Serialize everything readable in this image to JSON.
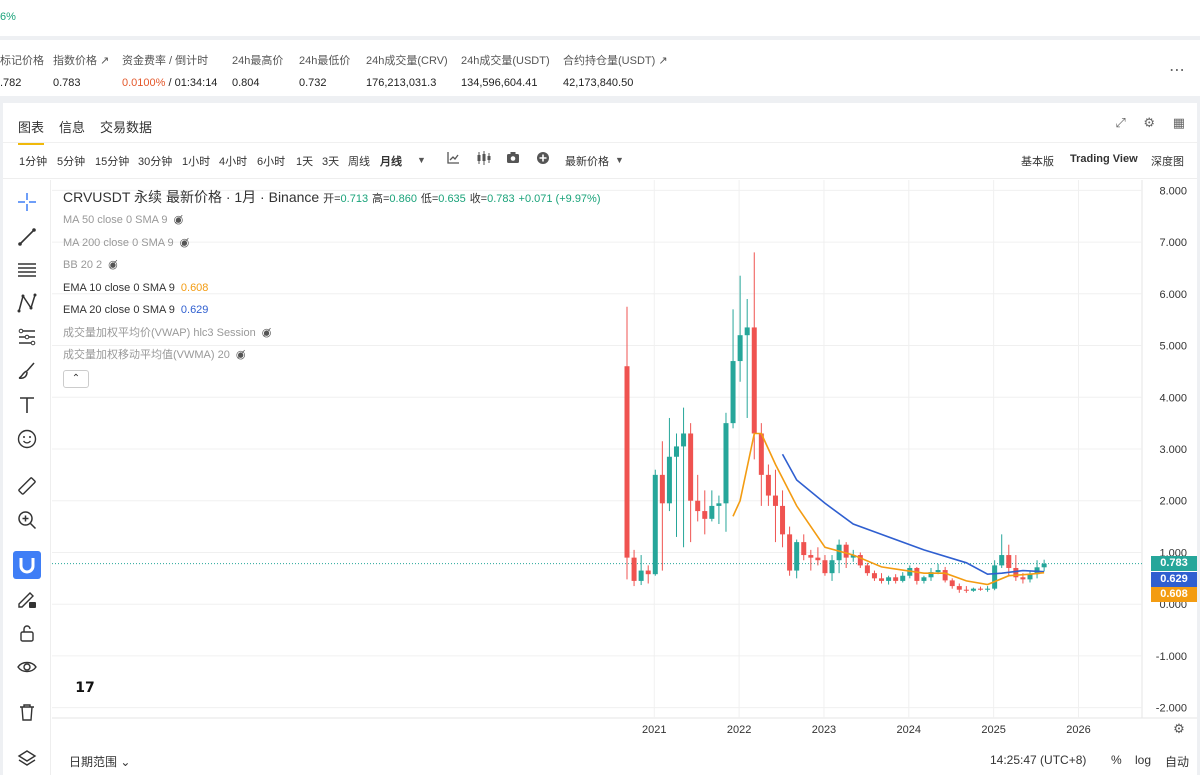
{
  "topbar": {
    "change_text": "6%"
  },
  "stats": [
    {
      "label": "标记价格",
      "value": ".782"
    },
    {
      "label": "指数价格 ↗",
      "value": "0.783"
    },
    {
      "label": "资金费率 / 倒计时",
      "rate": "0.0100%",
      "countdown": " / 01:34:14"
    },
    {
      "label": "24h最高价",
      "value": "0.804"
    },
    {
      "label": "24h最低价",
      "value": "0.732"
    },
    {
      "label": "24h成交量(CRV)",
      "value": "176,213,031.3"
    },
    {
      "label": "24h成交量(USDT)",
      "value": "134,596,604.41"
    },
    {
      "label": "合约持仓量(USDT) ↗",
      "value": "42,173,840.50"
    }
  ],
  "tabs": [
    "图表",
    "信息",
    "交易数据"
  ],
  "timeframes": [
    "1分钟",
    "5分钟",
    "15分钟",
    "30分钟",
    "1小时",
    "4小时",
    "6小时",
    "1天",
    "3天",
    "周线",
    "月线"
  ],
  "price_type": "最新价格",
  "view_modes": [
    "基本版",
    "Trading View",
    "深度图"
  ],
  "legend": {
    "symbol": "CRVUSDT 永续 最新价格 · 1月 · Binance",
    "open_label": "开=",
    "open": "0.713",
    "high_label": "高=",
    "high": "0.860",
    "low_label": "低=",
    "low": "0.635",
    "close_label": "收=",
    "close": "0.783",
    "change": "+0.071 (+9.97%)",
    "indicators": [
      {
        "label": "MA 50 close 0 SMA 9",
        "hidden": true
      },
      {
        "label": "MA 200 close 0 SMA 9",
        "hidden": true
      },
      {
        "label": "BB 20 2",
        "hidden": true
      },
      {
        "label": "EMA 10 close 0 SMA 9",
        "value": "0.608",
        "hidden": false
      },
      {
        "label": "EMA 20 close 0 SMA 9",
        "value": "0.629",
        "hidden": false
      },
      {
        "label": "成交量加权平均价(VWAP) hlc3 Session",
        "hidden": true
      },
      {
        "label": "成交量加权移动平均值(VWMA) 20",
        "hidden": true
      }
    ]
  },
  "bottom": {
    "date_range": "日期范围",
    "time": "14:25:47 (UTC+8)",
    "pct": "%",
    "log": "log",
    "auto": "自动"
  },
  "colors": {
    "up": "#26a69a",
    "down": "#ef5350",
    "ema10": "#f39c12",
    "ema20": "#2f5fd0",
    "accent": "#f0b90b"
  },
  "chart_data": {
    "type": "candlestick",
    "interval": "1M",
    "y_ticks": [
      "8.000",
      "7.000",
      "6.000",
      "5.000",
      "4.000",
      "3.000",
      "2.000",
      "1.000",
      "0.000",
      "-1.000",
      "-2.000"
    ],
    "x_ticks": [
      "2021",
      "2022",
      "2023",
      "2024",
      "2025",
      "2026"
    ],
    "ylim": [
      -2.2,
      8.2
    ],
    "last_price": "0.783",
    "ema20_last": "0.629",
    "ema10_last": "0.608",
    "candles": [
      [
        4.6,
        5.75,
        0.48,
        0.9
      ],
      [
        0.9,
        1.05,
        0.35,
        0.45
      ],
      [
        0.45,
        0.95,
        0.37,
        0.65
      ],
      [
        0.65,
        0.75,
        0.4,
        0.58
      ],
      [
        0.58,
        2.6,
        0.55,
        2.5
      ],
      [
        2.5,
        3.15,
        0.65,
        1.95
      ],
      [
        1.95,
        3.6,
        1.8,
        2.85
      ],
      [
        2.85,
        3.3,
        1.3,
        3.05
      ],
      [
        3.05,
        3.8,
        1.1,
        3.3
      ],
      [
        3.3,
        3.5,
        1.2,
        2.0
      ],
      [
        2.0,
        2.5,
        1.6,
        1.8
      ],
      [
        1.8,
        2.2,
        1.35,
        1.65
      ],
      [
        1.65,
        2.2,
        1.6,
        1.9
      ],
      [
        1.9,
        2.1,
        1.55,
        1.95
      ],
      [
        1.95,
        3.7,
        1.4,
        3.5
      ],
      [
        3.5,
        5.7,
        3.4,
        4.7
      ],
      [
        4.7,
        6.35,
        4.3,
        5.2
      ],
      [
        5.2,
        5.9,
        3.6,
        5.35
      ],
      [
        5.35,
        6.8,
        2.8,
        3.3
      ],
      [
        3.3,
        3.5,
        1.9,
        2.5
      ],
      [
        2.5,
        2.7,
        1.9,
        2.1
      ],
      [
        2.1,
        2.6,
        1.2,
        1.9
      ],
      [
        1.9,
        2.2,
        1.1,
        1.35
      ],
      [
        1.35,
        1.5,
        0.55,
        0.65
      ],
      [
        0.65,
        1.25,
        0.5,
        1.2
      ],
      [
        1.2,
        1.35,
        0.85,
        0.95
      ],
      [
        0.95,
        1.05,
        0.65,
        0.9
      ],
      [
        0.9,
        1.1,
        0.75,
        0.85
      ],
      [
        0.85,
        0.95,
        0.55,
        0.6
      ],
      [
        0.6,
        0.95,
        0.45,
        0.85
      ],
      [
        0.85,
        1.25,
        0.6,
        1.15
      ],
      [
        1.15,
        1.2,
        0.7,
        0.9
      ],
      [
        0.9,
        1.05,
        0.82,
        0.95
      ],
      [
        0.95,
        1.0,
        0.7,
        0.75
      ],
      [
        0.75,
        0.8,
        0.55,
        0.6
      ],
      [
        0.6,
        0.65,
        0.45,
        0.5
      ],
      [
        0.5,
        0.6,
        0.4,
        0.45
      ],
      [
        0.45,
        0.55,
        0.38,
        0.52
      ],
      [
        0.52,
        0.58,
        0.4,
        0.45
      ],
      [
        0.45,
        0.62,
        0.42,
        0.55
      ],
      [
        0.55,
        0.75,
        0.5,
        0.7
      ],
      [
        0.7,
        0.72,
        0.38,
        0.45
      ],
      [
        0.45,
        0.55,
        0.4,
        0.52
      ],
      [
        0.52,
        0.7,
        0.45,
        0.62
      ],
      [
        0.62,
        0.78,
        0.58,
        0.66
      ],
      [
        0.66,
        0.72,
        0.42,
        0.46
      ],
      [
        0.46,
        0.5,
        0.3,
        0.35
      ],
      [
        0.35,
        0.4,
        0.22,
        0.28
      ],
      [
        0.28,
        0.35,
        0.22,
        0.26
      ],
      [
        0.26,
        0.32,
        0.24,
        0.3
      ],
      [
        0.3,
        0.34,
        0.26,
        0.28
      ],
      [
        0.28,
        0.35,
        0.24,
        0.3
      ],
      [
        0.3,
        0.85,
        0.27,
        0.75
      ],
      [
        0.75,
        1.35,
        0.7,
        0.95
      ],
      [
        0.95,
        1.15,
        0.55,
        0.7
      ],
      [
        0.7,
        0.95,
        0.45,
        0.52
      ],
      [
        0.52,
        0.6,
        0.4,
        0.48
      ],
      [
        0.48,
        0.65,
        0.42,
        0.58
      ],
      [
        0.58,
        0.85,
        0.5,
        0.713
      ],
      [
        0.713,
        0.86,
        0.635,
        0.783
      ]
    ],
    "ema20": [
      [
        22,
        2.9
      ],
      [
        24,
        2.4
      ],
      [
        28,
        1.95
      ],
      [
        32,
        1.55
      ],
      [
        36,
        1.35
      ],
      [
        42,
        1.05
      ],
      [
        48,
        0.8
      ],
      [
        51,
        0.58
      ],
      [
        53,
        0.6
      ],
      [
        56,
        0.65
      ],
      [
        59,
        0.629
      ]
    ],
    "ema10": [
      [
        15,
        1.7
      ],
      [
        16,
        2.0
      ],
      [
        18,
        3.3
      ],
      [
        19,
        3.3
      ],
      [
        21,
        2.7
      ],
      [
        24,
        1.9
      ],
      [
        28,
        1.1
      ],
      [
        32,
        0.95
      ],
      [
        36,
        0.72
      ],
      [
        42,
        0.6
      ],
      [
        45,
        0.6
      ],
      [
        48,
        0.45
      ],
      [
        51,
        0.38
      ],
      [
        54,
        0.55
      ],
      [
        57,
        0.58
      ],
      [
        59,
        0.608
      ]
    ]
  }
}
